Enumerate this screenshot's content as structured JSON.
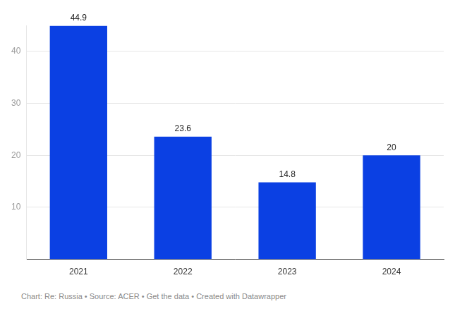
{
  "chart_data": {
    "type": "bar",
    "categories": [
      "2021",
      "2022",
      "2023",
      "2024"
    ],
    "values": [
      44.9,
      23.6,
      14.8,
      20
    ],
    "color": "#0b40e3",
    "ylim": [
      0,
      45
    ],
    "yticks": [
      10,
      20,
      30,
      40
    ],
    "grid": true,
    "data_labels": true,
    "source": "Chart: Re: Russia • Source: ACER • Get the data • Created with Datawrapper"
  }
}
